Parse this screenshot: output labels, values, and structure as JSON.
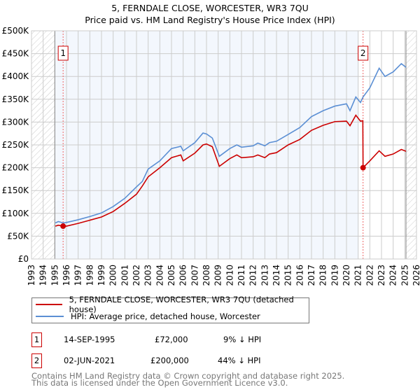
{
  "chart_data": {
    "type": "line",
    "title": "5, FERNDALE CLOSE, WORCESTER, WR3 7QU",
    "subtitle": "Price paid vs. HM Land Registry's House Price Index (HPI)",
    "xlim": [
      1993,
      2026
    ],
    "ylim": [
      0,
      500000
    ],
    "x_ticks": [
      "1993",
      "1994",
      "1995",
      "1996",
      "1997",
      "1998",
      "1999",
      "2000",
      "2001",
      "2002",
      "2003",
      "2004",
      "2005",
      "2006",
      "2007",
      "2008",
      "2009",
      "2010",
      "2011",
      "2012",
      "2013",
      "2014",
      "2015",
      "2016",
      "2017",
      "2018",
      "2019",
      "2020",
      "2021",
      "2022",
      "2023",
      "2024",
      "2025",
      "2026"
    ],
    "y_ticks": [
      {
        "v": 0,
        "label": "£0"
      },
      {
        "v": 50000,
        "label": "£50K"
      },
      {
        "v": 100000,
        "label": "£100K"
      },
      {
        "v": 150000,
        "label": "£150K"
      },
      {
        "v": 200000,
        "label": "£200K"
      },
      {
        "v": 250000,
        "label": "£250K"
      },
      {
        "v": 300000,
        "label": "£300K"
      },
      {
        "v": 350000,
        "label": "£350K"
      },
      {
        "v": 400000,
        "label": "£400K"
      },
      {
        "v": 450000,
        "label": "£450K"
      },
      {
        "v": 500000,
        "label": "£500K"
      }
    ],
    "grid": true,
    "series": [
      {
        "name": "5, FERNDALE CLOSE, WORCESTER, WR3 7QU (detached house)",
        "color": "#cc0000",
        "x": [
          1995.05,
          1995.3,
          1995.71,
          1996,
          1997,
          1998,
          1999,
          2000,
          2001,
          2002,
          2002.5,
          2003,
          2004,
          2005,
          2005.8,
          2006,
          2007,
          2007.7,
          2008,
          2008.5,
          2009.1,
          2010,
          2010.6,
          2011,
          2012,
          2012.4,
          2013,
          2013.4,
          2014,
          2015,
          2016,
          2017,
          2018,
          2019,
          2020,
          2020.3,
          2020.8,
          2021.2,
          2021.4,
          2021.42,
          2022,
          2022.8,
          2023.3,
          2024,
          2024.7,
          2025.1
        ],
        "y": [
          72000,
          74000,
          72000,
          72000,
          78000,
          85000,
          92000,
          104000,
          122000,
          142000,
          160000,
          180000,
          200000,
          222000,
          228000,
          215000,
          232000,
          250000,
          252000,
          246000,
          203000,
          220000,
          228000,
          222000,
          224000,
          228000,
          222000,
          230000,
          233000,
          250000,
          262000,
          282000,
          293000,
          301000,
          302000,
          292000,
          315000,
          302000,
          303000,
          200000,
          215000,
          237000,
          225000,
          230000,
          240000,
          236000
        ]
      },
      {
        "name": "HPI: Average price, detached house, Worcester",
        "color": "#5b8fd4",
        "x": [
          1995.05,
          1995.3,
          1995.71,
          1996,
          1997,
          1998,
          1999,
          2000,
          2001,
          2002,
          2002.5,
          2003,
          2004,
          2005,
          2005.8,
          2006,
          2007,
          2007.7,
          2008,
          2008.5,
          2009.1,
          2010,
          2010.6,
          2011,
          2012,
          2012.4,
          2013,
          2013.4,
          2014,
          2015,
          2016,
          2017,
          2018,
          2019,
          2020,
          2020.3,
          2020.8,
          2021.2,
          2021.42,
          2022,
          2022.8,
          2023.3,
          2024,
          2024.7,
          2025.1
        ],
        "y": [
          79000,
          82000,
          79000,
          80000,
          86000,
          93000,
          101000,
          115000,
          133000,
          158000,
          170000,
          197000,
          215000,
          242000,
          247000,
          237000,
          255000,
          276000,
          274000,
          265000,
          225000,
          242000,
          250000,
          245000,
          248000,
          254000,
          248000,
          255000,
          258000,
          273000,
          288000,
          312000,
          325000,
          335000,
          340000,
          325000,
          355000,
          343000,
          355000,
          375000,
          418000,
          400000,
          410000,
          428000,
          420000
        ]
      }
    ],
    "annotations": [
      {
        "label": "1",
        "x": 1995.71,
        "y": 72000,
        "date": "14-SEP-1995",
        "price": "£72,000",
        "hpi": "9% ↓ HPI"
      },
      {
        "label": "2",
        "x": 2021.42,
        "y": 200000,
        "date": "02-JUN-2021",
        "price": "£200,000",
        "hpi": "44% ↓ HPI"
      }
    ],
    "shaded_range": [
      1995,
      2021.0
    ],
    "hatched_ranges": [
      [
        1993,
        1995
      ],
      [
        2025.1,
        2026
      ]
    ],
    "legend_placement": "below"
  },
  "footer": {
    "line1": "Contains HM Land Registry data © Crown copyright and database right 2025.",
    "line2": "This data is licensed under the Open Government Licence v3.0."
  }
}
